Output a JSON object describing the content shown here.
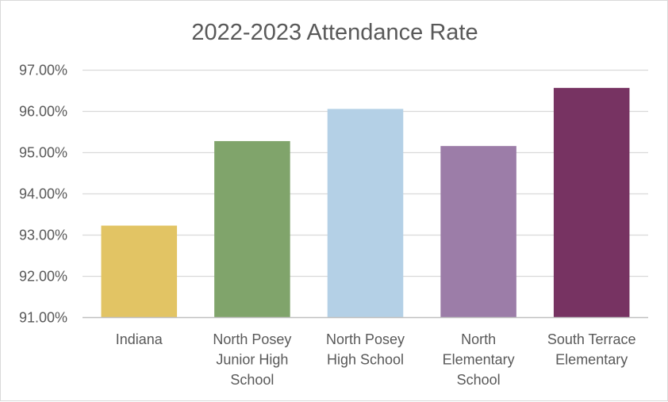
{
  "chart_data": {
    "type": "bar",
    "title": "2022-2023 Attendance Rate",
    "xlabel": "",
    "ylabel": "",
    "ylim": [
      91,
      97
    ],
    "yticks": [
      91,
      92,
      93,
      94,
      95,
      96,
      97
    ],
    "ytick_labels": [
      "91.00%",
      "92.00%",
      "93.00%",
      "94.00%",
      "95.00%",
      "96.00%",
      "97.00%"
    ],
    "grid": true,
    "legend": "none",
    "categories": [
      [
        "Indiana"
      ],
      [
        "North Posey",
        "Junior High",
        "School"
      ],
      [
        "North Posey",
        "High School"
      ],
      [
        "North",
        "Elementary",
        "School"
      ],
      [
        "South Terrace",
        "Elementary"
      ]
    ],
    "values": [
      93.23,
      95.28,
      96.06,
      95.16,
      96.57
    ],
    "colors": [
      "#E2C464",
      "#80A46B",
      "#B4D0E6",
      "#9C7DA8",
      "#773362"
    ]
  }
}
